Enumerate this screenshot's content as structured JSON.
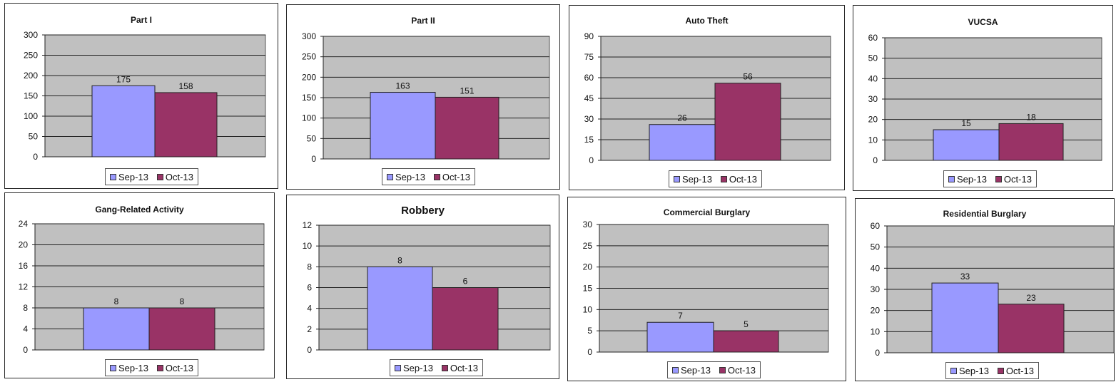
{
  "colors": {
    "sep": "#9999ff",
    "oct": "#993366",
    "plot_bg": "#c0c0c0"
  },
  "chart_data": [
    {
      "type": "bar",
      "title": "Part I",
      "categories": [
        "Sep-13",
        "Oct-13"
      ],
      "values": [
        175,
        158
      ],
      "ylim": [
        0,
        300
      ],
      "yticks": [
        0,
        50,
        100,
        150,
        200,
        250,
        300
      ],
      "grid": true,
      "legend": "bottom"
    },
    {
      "type": "bar",
      "title": "Part II",
      "categories": [
        "Sep-13",
        "Oct-13"
      ],
      "values": [
        163,
        151
      ],
      "ylim": [
        0,
        300
      ],
      "yticks": [
        0,
        50,
        100,
        150,
        200,
        250,
        300
      ],
      "grid": true,
      "legend": "bottom"
    },
    {
      "type": "bar",
      "title": "Auto Theft",
      "categories": [
        "Sep-13",
        "Oct-13"
      ],
      "values": [
        26,
        56
      ],
      "ylim": [
        0,
        90
      ],
      "yticks": [
        0,
        15,
        30,
        45,
        60,
        75,
        90
      ],
      "grid": true,
      "legend": "bottom"
    },
    {
      "type": "bar",
      "title": "VUCSA",
      "categories": [
        "Sep-13",
        "Oct-13"
      ],
      "values": [
        15,
        18
      ],
      "ylim": [
        0,
        60
      ],
      "yticks": [
        0,
        10,
        20,
        30,
        40,
        50,
        60
      ],
      "grid": true,
      "legend": "bottom"
    },
    {
      "type": "bar",
      "title": "Gang-Related Activity",
      "categories": [
        "Sep-13",
        "Oct-13"
      ],
      "values": [
        8,
        8
      ],
      "ylim": [
        0,
        24
      ],
      "yticks": [
        0,
        4,
        8,
        12,
        16,
        20,
        24
      ],
      "grid": true,
      "legend": "bottom"
    },
    {
      "type": "bar",
      "title": "Robbery",
      "categories": [
        "Sep-13",
        "Oct-13"
      ],
      "values": [
        8,
        6
      ],
      "ylim": [
        0,
        12
      ],
      "yticks": [
        0,
        2,
        4,
        6,
        8,
        10,
        12
      ],
      "grid": true,
      "legend": "bottom"
    },
    {
      "type": "bar",
      "title": "Commercial Burglary",
      "categories": [
        "Sep-13",
        "Oct-13"
      ],
      "values": [
        7,
        5
      ],
      "ylim": [
        0,
        30
      ],
      "yticks": [
        0,
        5,
        10,
        15,
        20,
        25,
        30
      ],
      "grid": true,
      "legend": "bottom"
    },
    {
      "type": "bar",
      "title": "Residential Burglary",
      "categories": [
        "Sep-13",
        "Oct-13"
      ],
      "values": [
        33,
        23
      ],
      "ylim": [
        0,
        60
      ],
      "yticks": [
        0,
        10,
        20,
        30,
        40,
        50,
        60
      ],
      "grid": true,
      "legend": "bottom"
    }
  ]
}
